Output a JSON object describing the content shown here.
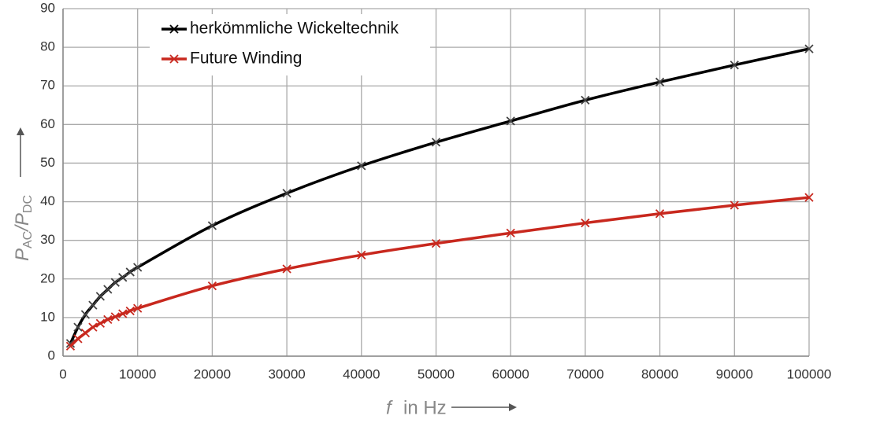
{
  "chart_data": {
    "type": "line",
    "x": [
      1000,
      2000,
      3000,
      4000,
      5000,
      6000,
      7000,
      8000,
      9000,
      10000,
      20000,
      30000,
      40000,
      50000,
      60000,
      70000,
      80000,
      90000,
      100000
    ],
    "series": [
      {
        "name": "herkömmliche Wickeltechnik",
        "color": "#000000",
        "values": [
          3.3,
          7.5,
          10.8,
          13.2,
          15.5,
          17.3,
          19.1,
          20.4,
          21.8,
          23.0,
          33.8,
          42.2,
          49.3,
          55.4,
          60.9,
          66.3,
          71.0,
          75.4,
          79.6
        ]
      },
      {
        "name": "Future Winding",
        "color": "#c8281e",
        "values": [
          2.6,
          4.5,
          6.0,
          7.5,
          8.5,
          9.5,
          10.2,
          11.0,
          11.7,
          12.4,
          18.2,
          22.6,
          26.2,
          29.2,
          31.9,
          34.5,
          36.9,
          39.1,
          41.1
        ]
      }
    ],
    "xlim": [
      0,
      100000
    ],
    "xticks": [
      0,
      10000,
      20000,
      30000,
      40000,
      50000,
      60000,
      70000,
      80000,
      90000,
      100000
    ],
    "ylim": [
      0,
      90
    ],
    "yticks": [
      0,
      10,
      20,
      30,
      40,
      50,
      60,
      70,
      80,
      90
    ],
    "x_label": [
      "f",
      "in Hz"
    ],
    "y_label": [
      "P",
      "AC",
      "/P",
      "DC"
    ],
    "grid": true,
    "legend": "upper left"
  }
}
